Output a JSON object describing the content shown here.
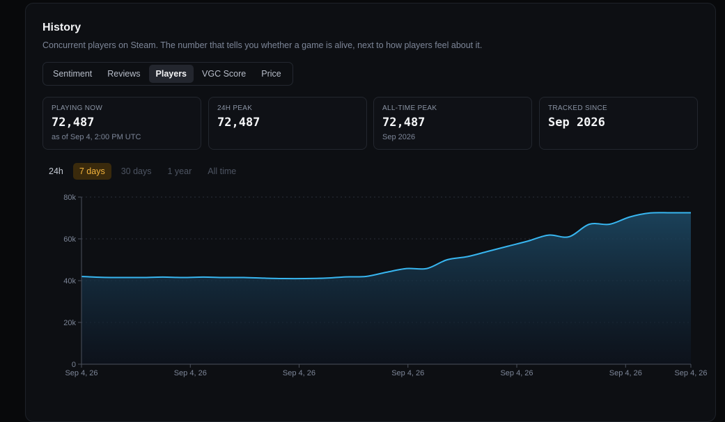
{
  "history": {
    "title": "History",
    "subtitle": "Concurrent players on Steam. The number that tells you whether a game is alive, next to how players feel about it.",
    "tabs": [
      "Sentiment",
      "Reviews",
      "Players",
      "VGC Score",
      "Price"
    ],
    "active_tab": "Players"
  },
  "stats": {
    "playing_now": {
      "label": "PLAYING NOW",
      "value": "72,487",
      "sub": "as of Sep 4, 2:00 PM UTC"
    },
    "peak_24h": {
      "label": "24H PEAK",
      "value": "72,487"
    },
    "all_time_peak": {
      "label": "ALL-TIME PEAK",
      "value": "72,487",
      "sub": "Sep 2026"
    },
    "tracked_since": {
      "label": "TRACKED SINCE",
      "value": "Sep 2026"
    }
  },
  "ranges": [
    "24h",
    "7 days",
    "30 days",
    "1 year",
    "All time"
  ],
  "active_range": "7 days",
  "footer_note": "",
  "colors": {
    "line": "#38b6f0",
    "accent": "#f4b43c",
    "card_bg": "#0d0f13"
  },
  "chart_data": {
    "type": "area",
    "y_ticks": [
      "0",
      "20k",
      "40k",
      "60k",
      "80k"
    ],
    "ylim": [
      0,
      80000
    ],
    "x_tick_labels": [
      "Sep 4, 26",
      "Sep 4, 26",
      "Sep 4, 26",
      "Sep 4, 26",
      "Sep 4, 26",
      "Sep 4, 26",
      "Sep 4, 26"
    ],
    "grid": true,
    "series": [
      {
        "values": [
          42000,
          41600,
          41500,
          41500,
          41700,
          41500,
          41700,
          41500,
          41500,
          41200,
          41000,
          41000,
          41200,
          41800,
          42000,
          44000,
          45800,
          45800,
          50000,
          51500,
          54000,
          56500,
          59000,
          61800,
          61000,
          67000,
          67000,
          70500,
          72400,
          72487,
          72487
        ]
      }
    ]
  }
}
